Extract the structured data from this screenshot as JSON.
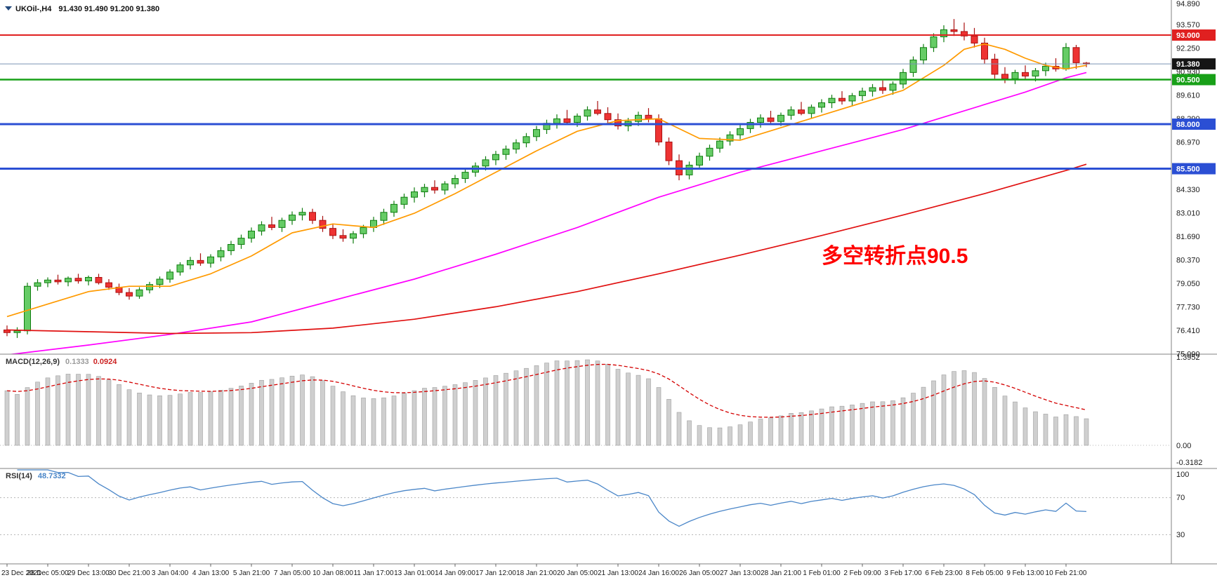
{
  "window": {
    "symbol_label": "UKOil-,H4",
    "ohlc_label": "91.430 91.490 91.200 91.380"
  },
  "chart_data": {
    "type": "candlestick",
    "symbol": "UKOil-",
    "timeframe": "H4",
    "current_ohlc": {
      "open": 91.43,
      "high": 91.49,
      "low": 91.2,
      "close": 91.38
    },
    "price_axis": {
      "min": 75.09,
      "max": 94.89,
      "tick_labels": [
        "94.890",
        "93.570",
        "92.250",
        "90.930",
        "89.610",
        "88.290",
        "86.970",
        "85.650",
        "84.330",
        "83.010",
        "81.690",
        "80.370",
        "79.050",
        "77.730",
        "76.410",
        "75.090"
      ]
    },
    "time_axis_labels": [
      "23 Dec 2021",
      "28 Dec 05:00",
      "29 Dec 13:00",
      "30 Dec 21:00",
      "3 Jan 04:00",
      "4 Jan 13:00",
      "5 Jan 21:00",
      "7 Jan 05:00",
      "10 Jan 08:00",
      "11 Jan 17:00",
      "13 Jan 01:00",
      "14 Jan 09:00",
      "17 Jan 12:00",
      "18 Jan 21:00",
      "20 Jan 05:00",
      "21 Jan 13:00",
      "24 Jan 16:00",
      "26 Jan 05:00",
      "27 Jan 13:00",
      "28 Jan 21:00",
      "1 Feb 01:00",
      "2 Feb 09:00",
      "3 Feb 17:00",
      "6 Feb 23:00",
      "8 Feb 05:00",
      "9 Feb 13:00",
      "10 Feb 21:00"
    ],
    "candles_per_time_label": 4,
    "candles": [
      [
        76.45,
        76.7,
        76.1,
        76.3
      ],
      [
        76.3,
        76.6,
        76.0,
        76.4
      ],
      [
        76.4,
        79.1,
        76.2,
        78.9
      ],
      [
        78.9,
        79.3,
        78.65,
        79.1
      ],
      [
        79.1,
        79.4,
        78.85,
        79.25
      ],
      [
        79.25,
        79.55,
        79.0,
        79.15
      ],
      [
        79.15,
        79.45,
        78.9,
        79.35
      ],
      [
        79.35,
        79.6,
        79.05,
        79.2
      ],
      [
        79.2,
        79.5,
        78.95,
        79.4
      ],
      [
        79.4,
        79.6,
        79.0,
        79.1
      ],
      [
        79.1,
        79.3,
        78.7,
        78.85
      ],
      [
        78.85,
        79.05,
        78.4,
        78.55
      ],
      [
        78.55,
        78.8,
        78.15,
        78.35
      ],
      [
        78.35,
        78.85,
        78.2,
        78.7
      ],
      [
        78.7,
        79.15,
        78.5,
        79.0
      ],
      [
        79.0,
        79.45,
        78.8,
        79.3
      ],
      [
        79.3,
        79.85,
        79.1,
        79.7
      ],
      [
        79.7,
        80.25,
        79.5,
        80.1
      ],
      [
        80.1,
        80.55,
        79.85,
        80.35
      ],
      [
        80.35,
        80.75,
        80.05,
        80.2
      ],
      [
        80.2,
        80.7,
        79.95,
        80.55
      ],
      [
        80.55,
        81.1,
        80.3,
        80.9
      ],
      [
        80.9,
        81.45,
        80.65,
        81.25
      ],
      [
        81.25,
        81.8,
        81.0,
        81.6
      ],
      [
        81.6,
        82.2,
        81.35,
        82.0
      ],
      [
        82.0,
        82.55,
        81.75,
        82.35
      ],
      [
        82.35,
        82.8,
        82.05,
        82.2
      ],
      [
        82.2,
        82.75,
        81.95,
        82.6
      ],
      [
        82.6,
        83.1,
        82.35,
        82.9
      ],
      [
        82.9,
        83.3,
        82.6,
        83.05
      ],
      [
        83.05,
        83.25,
        82.4,
        82.6
      ],
      [
        82.6,
        82.85,
        81.95,
        82.15
      ],
      [
        82.15,
        82.4,
        81.55,
        81.75
      ],
      [
        81.75,
        82.1,
        81.4,
        81.6
      ],
      [
        81.6,
        82.0,
        81.3,
        81.85
      ],
      [
        81.85,
        82.35,
        81.6,
        82.2
      ],
      [
        82.2,
        82.8,
        81.95,
        82.6
      ],
      [
        82.6,
        83.25,
        82.35,
        83.05
      ],
      [
        83.05,
        83.7,
        82.8,
        83.5
      ],
      [
        83.5,
        84.1,
        83.25,
        83.9
      ],
      [
        83.9,
        84.45,
        83.6,
        84.2
      ],
      [
        84.2,
        84.65,
        83.9,
        84.45
      ],
      [
        84.45,
        84.85,
        84.1,
        84.3
      ],
      [
        84.3,
        84.8,
        84.05,
        84.65
      ],
      [
        84.65,
        85.15,
        84.4,
        84.95
      ],
      [
        84.95,
        85.5,
        84.7,
        85.3
      ],
      [
        85.3,
        85.85,
        85.05,
        85.65
      ],
      [
        85.65,
        86.2,
        85.4,
        86.0
      ],
      [
        86.0,
        86.5,
        85.7,
        86.3
      ],
      [
        86.3,
        86.8,
        86.0,
        86.6
      ],
      [
        86.6,
        87.15,
        86.35,
        86.95
      ],
      [
        86.95,
        87.5,
        86.7,
        87.3
      ],
      [
        87.3,
        87.9,
        87.05,
        87.7
      ],
      [
        87.7,
        88.25,
        87.45,
        88.05
      ],
      [
        88.05,
        88.55,
        87.75,
        88.3
      ],
      [
        88.3,
        88.8,
        88.0,
        88.1
      ],
      [
        88.1,
        88.6,
        87.85,
        88.45
      ],
      [
        88.45,
        89.0,
        88.2,
        88.8
      ],
      [
        88.8,
        89.3,
        88.5,
        88.6
      ],
      [
        88.6,
        88.95,
        88.05,
        88.25
      ],
      [
        88.25,
        88.6,
        87.7,
        87.9
      ],
      [
        87.9,
        88.35,
        87.6,
        88.15
      ],
      [
        88.15,
        88.7,
        87.9,
        88.5
      ],
      [
        88.5,
        88.9,
        88.1,
        88.3
      ],
      [
        88.3,
        88.55,
        86.8,
        87.0
      ],
      [
        87.0,
        87.25,
        85.7,
        85.95
      ],
      [
        85.95,
        86.3,
        84.85,
        85.15
      ],
      [
        85.15,
        85.9,
        84.9,
        85.7
      ],
      [
        85.7,
        86.4,
        85.45,
        86.2
      ],
      [
        86.2,
        86.85,
        85.95,
        86.65
      ],
      [
        86.65,
        87.25,
        86.4,
        87.05
      ],
      [
        87.05,
        87.6,
        86.8,
        87.4
      ],
      [
        87.4,
        87.95,
        87.15,
        87.75
      ],
      [
        87.75,
        88.3,
        87.5,
        88.1
      ],
      [
        88.1,
        88.55,
        87.8,
        88.35
      ],
      [
        88.35,
        88.75,
        88.0,
        88.15
      ],
      [
        88.15,
        88.65,
        87.9,
        88.5
      ],
      [
        88.5,
        89.0,
        88.25,
        88.8
      ],
      [
        88.8,
        89.25,
        88.5,
        88.6
      ],
      [
        88.6,
        89.1,
        88.35,
        88.95
      ],
      [
        88.95,
        89.4,
        88.65,
        89.2
      ],
      [
        89.2,
        89.65,
        88.9,
        89.45
      ],
      [
        89.45,
        89.85,
        89.1,
        89.3
      ],
      [
        89.3,
        89.75,
        89.0,
        89.6
      ],
      [
        89.6,
        90.05,
        89.3,
        89.85
      ],
      [
        89.85,
        90.25,
        89.55,
        90.05
      ],
      [
        90.05,
        90.45,
        89.7,
        89.9
      ],
      [
        89.9,
        90.4,
        89.65,
        90.25
      ],
      [
        90.25,
        91.1,
        90.0,
        90.9
      ],
      [
        90.9,
        91.8,
        90.65,
        91.6
      ],
      [
        91.6,
        92.5,
        91.35,
        92.3
      ],
      [
        92.3,
        93.1,
        92.05,
        92.9
      ],
      [
        92.9,
        93.55,
        92.6,
        93.3
      ],
      [
        93.3,
        93.9,
        92.95,
        93.2
      ],
      [
        93.2,
        93.7,
        92.7,
        92.95
      ],
      [
        92.95,
        93.4,
        92.3,
        92.55
      ],
      [
        92.55,
        92.85,
        91.4,
        91.65
      ],
      [
        91.65,
        91.95,
        90.55,
        90.8
      ],
      [
        90.8,
        91.2,
        90.3,
        90.55
      ],
      [
        90.55,
        91.05,
        90.25,
        90.9
      ],
      [
        90.9,
        91.3,
        90.5,
        90.7
      ],
      [
        90.7,
        91.15,
        90.4,
        91.0
      ],
      [
        91.0,
        91.45,
        90.7,
        91.25
      ],
      [
        91.25,
        91.7,
        90.95,
        91.1
      ],
      [
        91.1,
        92.55,
        91.0,
        92.3
      ],
      [
        92.3,
        92.45,
        91.1,
        91.45
      ],
      [
        91.43,
        91.49,
        91.2,
        91.38
      ]
    ],
    "moving_averages": [
      {
        "name": "ma-fast",
        "color": "#ff9a00",
        "points": [
          [
            0,
            77.2
          ],
          [
            4,
            77.9
          ],
          [
            8,
            78.6
          ],
          [
            12,
            78.9
          ],
          [
            16,
            78.9
          ],
          [
            20,
            79.6
          ],
          [
            24,
            80.6
          ],
          [
            28,
            81.9
          ],
          [
            32,
            82.4
          ],
          [
            36,
            82.2
          ],
          [
            40,
            83.0
          ],
          [
            44,
            84.1
          ],
          [
            48,
            85.3
          ],
          [
            52,
            86.5
          ],
          [
            56,
            87.6
          ],
          [
            60,
            88.2
          ],
          [
            64,
            88.3
          ],
          [
            68,
            87.2
          ],
          [
            72,
            87.1
          ],
          [
            76,
            87.8
          ],
          [
            80,
            88.5
          ],
          [
            84,
            89.2
          ],
          [
            88,
            89.9
          ],
          [
            92,
            91.3
          ],
          [
            94,
            92.2
          ],
          [
            96,
            92.5
          ],
          [
            98,
            92.2
          ],
          [
            100,
            91.7
          ],
          [
            102,
            91.3
          ],
          [
            104,
            91.1
          ],
          [
            106,
            91.3
          ]
        ]
      },
      {
        "name": "ma-mid",
        "color": "#ff00ff",
        "points": [
          [
            0,
            75.05
          ],
          [
            8,
            75.6
          ],
          [
            16,
            76.2
          ],
          [
            24,
            76.9
          ],
          [
            32,
            78.1
          ],
          [
            40,
            79.3
          ],
          [
            48,
            80.7
          ],
          [
            56,
            82.2
          ],
          [
            64,
            83.9
          ],
          [
            68,
            84.6
          ],
          [
            72,
            85.3
          ],
          [
            76,
            85.9
          ],
          [
            80,
            86.5
          ],
          [
            84,
            87.1
          ],
          [
            88,
            87.7
          ],
          [
            92,
            88.4
          ],
          [
            96,
            89.1
          ],
          [
            100,
            89.8
          ],
          [
            104,
            90.6
          ],
          [
            106,
            90.9
          ]
        ]
      },
      {
        "name": "ma-slow",
        "color": "#e01010",
        "points": [
          [
            0,
            76.45
          ],
          [
            8,
            76.35
          ],
          [
            16,
            76.25
          ],
          [
            24,
            76.3
          ],
          [
            32,
            76.55
          ],
          [
            40,
            77.05
          ],
          [
            48,
            77.75
          ],
          [
            56,
            78.6
          ],
          [
            64,
            79.6
          ],
          [
            72,
            80.65
          ],
          [
            80,
            81.75
          ],
          [
            88,
            82.9
          ],
          [
            96,
            84.1
          ],
          [
            100,
            84.75
          ],
          [
            104,
            85.4
          ],
          [
            106,
            85.75
          ]
        ]
      }
    ],
    "horizontal_lines": [
      {
        "price": 93.0,
        "label": "93.000",
        "color": "#e02020",
        "width": 2
      },
      {
        "price": 90.5,
        "label": "90.500",
        "color": "#18a018",
        "width": 2.5
      },
      {
        "price": 88.0,
        "label": "88.000",
        "color": "#2b4fd4",
        "width": 3
      },
      {
        "price": 85.5,
        "label": "85.500",
        "color": "#2b4fd4",
        "width": 3
      }
    ],
    "bid_line": {
      "price": 91.38,
      "label": "91.380"
    },
    "annotation": {
      "text": "多空转折点90.5",
      "color": "#ff0000",
      "x_index": 80,
      "price": 80.2
    },
    "macd": {
      "label": "MACD(12,26,9)",
      "value1": "0.1333",
      "value2": "0.0924",
      "fast": 12,
      "slow": 26,
      "signal": 9,
      "axis_labels": [
        "1.3952",
        "0.00",
        "-0.3182"
      ]
    },
    "rsi": {
      "label": "RSI(14)",
      "current_value": "48.7332",
      "period": 14,
      "levels": [
        70,
        30
      ],
      "axis_labels": [
        "100",
        "70",
        "30"
      ]
    },
    "colors": {
      "up_fill": "#66cc66",
      "up_stroke": "#0f7d0f",
      "down_fill": "#ee3333",
      "down_stroke": "#aa1111",
      "bid_line": "#7a93b5",
      "bid_tag_bg": "#151515",
      "macd_histogram": "#cfcfcf",
      "macd_histogram_stroke": "#9e9e9e",
      "macd_signal": "#d40000",
      "rsi_line": "#4a86c8",
      "border": "#808080"
    }
  }
}
